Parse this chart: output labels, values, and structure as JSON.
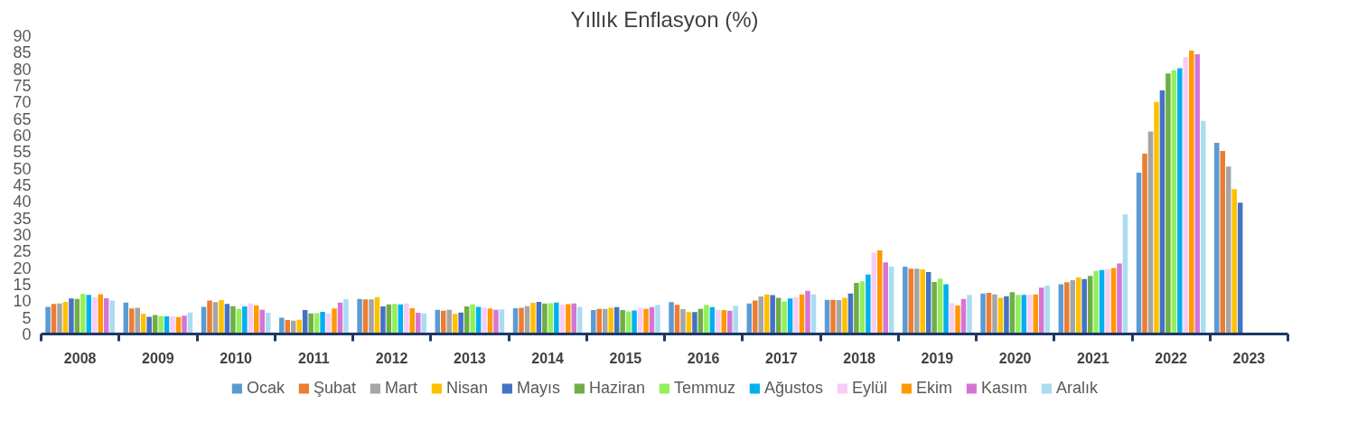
{
  "chart_data": {
    "type": "bar",
    "title": "Yıllık Enflasyon (%)",
    "categories": [
      "2008",
      "2009",
      "2010",
      "2011",
      "2012",
      "2013",
      "2014",
      "2015",
      "2016",
      "2017",
      "2018",
      "2019",
      "2020",
      "2021",
      "2022",
      "2023"
    ],
    "series": [
      {
        "name": "Ocak",
        "color": "#5b9bd5",
        "values": [
          8.2,
          9.5,
          8.2,
          4.9,
          10.6,
          7.3,
          7.8,
          7.2,
          9.6,
          9.2,
          10.3,
          20.3,
          12.2,
          15.0,
          48.7,
          57.7
        ]
      },
      {
        "name": "Şubat",
        "color": "#ed7d31",
        "values": [
          9.1,
          7.7,
          10.1,
          4.2,
          10.4,
          7.0,
          7.9,
          7.6,
          8.8,
          10.1,
          10.3,
          19.7,
          12.4,
          15.6,
          54.4,
          55.2
        ]
      },
      {
        "name": "Mart",
        "color": "#a5a5a5",
        "values": [
          9.2,
          7.9,
          9.6,
          4.0,
          10.4,
          7.3,
          8.4,
          7.6,
          7.5,
          11.3,
          10.2,
          19.7,
          11.9,
          16.2,
          61.1,
          50.5
        ]
      },
      {
        "name": "Nisan",
        "color": "#ffc000",
        "values": [
          9.7,
          6.1,
          10.2,
          4.3,
          11.1,
          6.1,
          9.4,
          7.9,
          6.6,
          11.9,
          10.9,
          19.5,
          10.9,
          17.1,
          70.0,
          43.7
        ]
      },
      {
        "name": "Mayıs",
        "color": "#4472c4",
        "values": [
          10.7,
          5.2,
          9.1,
          7.2,
          8.3,
          6.5,
          9.7,
          8.1,
          6.6,
          11.7,
          12.2,
          18.7,
          11.4,
          16.6,
          73.5,
          39.6
        ]
      },
      {
        "name": "Haziran",
        "color": "#70ad47",
        "values": [
          10.6,
          5.7,
          8.4,
          6.2,
          8.9,
          8.3,
          9.2,
          7.2,
          7.6,
          10.9,
          15.4,
          15.7,
          12.6,
          17.5,
          78.6,
          null
        ]
      },
      {
        "name": "Temmuz",
        "color": "#92f05a",
        "values": [
          12.1,
          5.4,
          7.6,
          6.3,
          9.1,
          8.9,
          9.3,
          6.8,
          8.8,
          9.8,
          15.9,
          16.7,
          11.8,
          19.0,
          79.6,
          null
        ]
      },
      {
        "name": "Ağustos",
        "color": "#00b0f0",
        "values": [
          11.8,
          5.3,
          8.3,
          6.7,
          8.9,
          8.2,
          9.5,
          7.1,
          8.1,
          10.7,
          17.9,
          15.0,
          11.8,
          19.3,
          80.2,
          null
        ]
      },
      {
        "name": "Eylül",
        "color": "#f8cdf5",
        "values": [
          11.1,
          5.3,
          9.2,
          6.2,
          9.2,
          7.9,
          8.9,
          8.0,
          7.3,
          11.2,
          24.5,
          9.3,
          11.8,
          19.6,
          83.5,
          null
        ]
      },
      {
        "name": "Ekim",
        "color": "#ff9900",
        "values": [
          12.0,
          5.1,
          8.6,
          7.7,
          7.8,
          7.7,
          9.0,
          7.6,
          7.2,
          11.9,
          25.2,
          8.6,
          11.9,
          19.9,
          85.5,
          null
        ]
      },
      {
        "name": "Kasım",
        "color": "#d674d6",
        "values": [
          10.8,
          5.5,
          7.3,
          9.5,
          6.4,
          7.3,
          9.2,
          8.1,
          7.0,
          13.0,
          21.6,
          10.6,
          14.0,
          21.3,
          84.4,
          null
        ]
      },
      {
        "name": "Aralık",
        "color": "#aadcf0",
        "values": [
          10.1,
          6.5,
          6.4,
          10.5,
          6.2,
          7.4,
          8.2,
          8.8,
          8.5,
          11.9,
          20.3,
          11.8,
          14.6,
          36.1,
          64.3,
          null
        ]
      }
    ],
    "ylim": [
      0,
      90
    ],
    "yticks": [
      0,
      5,
      10,
      15,
      20,
      25,
      30,
      35,
      40,
      45,
      50,
      55,
      60,
      65,
      70,
      75,
      80,
      85,
      90
    ],
    "legend": "bottom"
  }
}
